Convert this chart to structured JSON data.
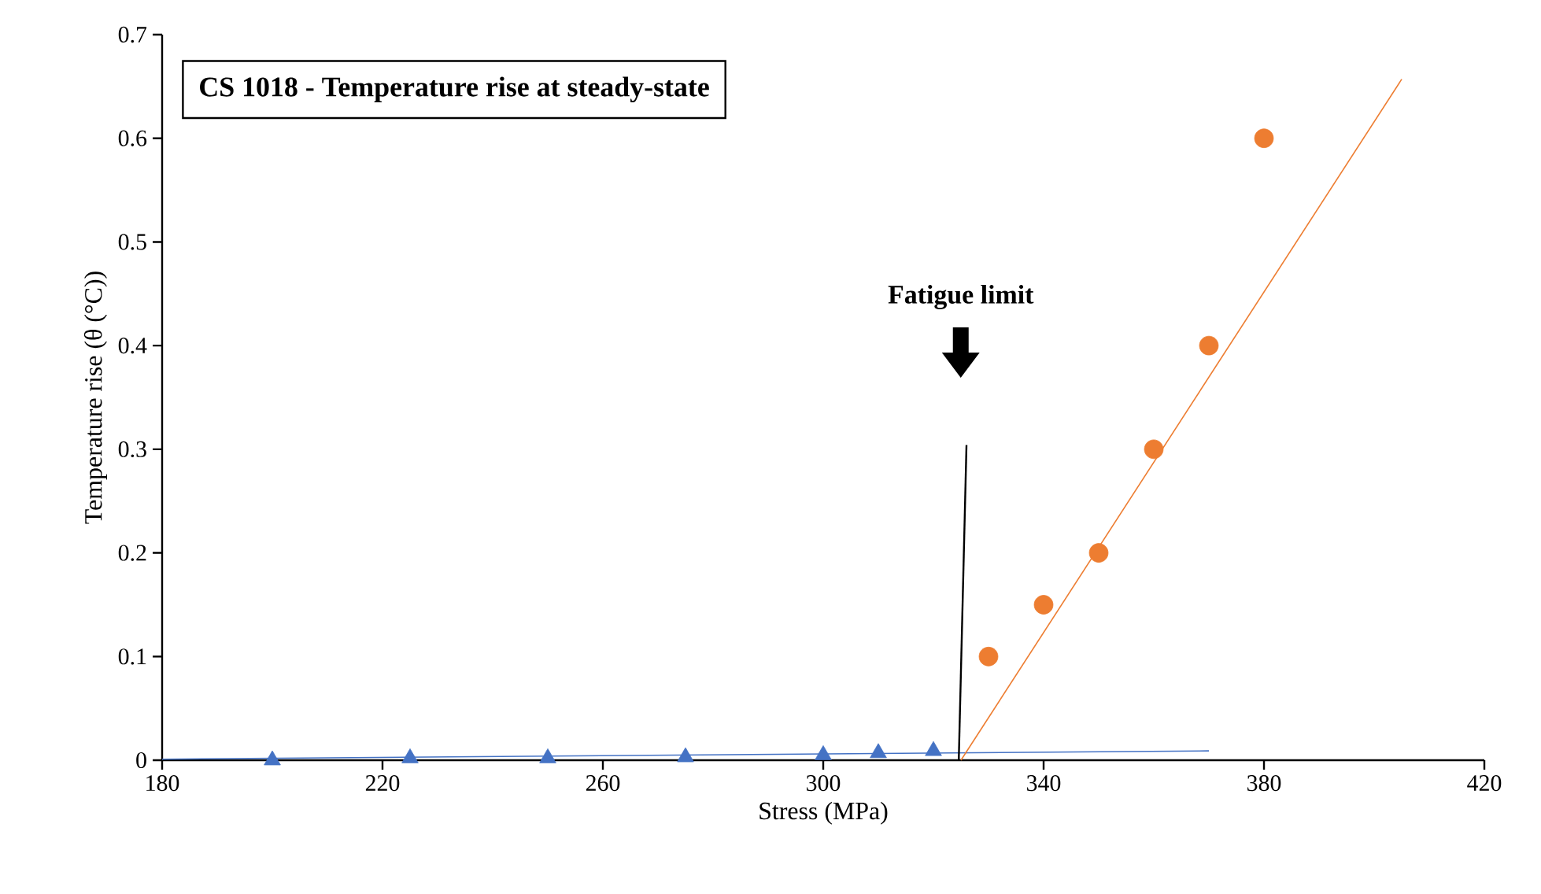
{
  "chart_data": {
    "type": "scatter",
    "title": "CS 1018 - Temperature rise at steady-state",
    "xlabel": "Stress (MPa)",
    "ylabel": "Temperature rise (θ (°C))",
    "xlim": [
      180,
      420
    ],
    "xticks": [
      180,
      220,
      260,
      300,
      340,
      380,
      420
    ],
    "ylim": [
      0,
      0.7
    ],
    "yticks": [
      0,
      0.1,
      0.2,
      0.3,
      0.4,
      0.5,
      0.6,
      0.7
    ],
    "grid": false,
    "series": [
      {
        "marker": "triangle",
        "color": "#4472c4",
        "x": [
          200,
          225,
          250,
          275,
          300,
          310,
          320
        ],
        "values": [
          0,
          0.002,
          0.002,
          0.003,
          0.005,
          0.007,
          0.009
        ]
      },
      {
        "type": "line",
        "marker": "none",
        "color": "#4472c4",
        "x": [
          180,
          370
        ],
        "values": [
          0.001,
          0.009
        ]
      },
      {
        "marker": "circle",
        "color": "#ed7d31",
        "x": [
          330,
          340,
          350,
          360,
          370,
          380
        ],
        "values": [
          0.1,
          0.15,
          0.2,
          0.3,
          0.4,
          0.6
        ]
      },
      {
        "type": "line",
        "marker": "none",
        "color": "#ed7d31",
        "x": [
          325,
          405
        ],
        "values": [
          0,
          0.657
        ]
      },
      {
        "type": "line",
        "marker": "none",
        "color": "#000000",
        "x": [
          324.6,
          326
        ],
        "values": [
          0,
          0.304
        ]
      }
    ],
    "annotations": [
      "Fatigue limit"
    ]
  }
}
